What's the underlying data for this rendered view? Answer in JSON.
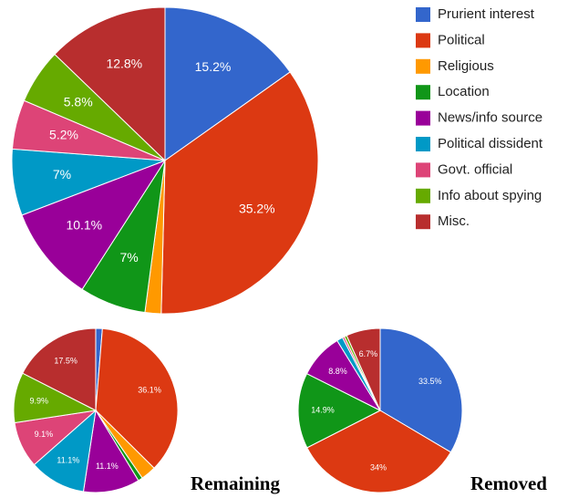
{
  "chart_data": [
    {
      "type": "pie",
      "categories": [
        "Prurient interest",
        "Political",
        "Religious",
        "Location",
        "News/info source",
        "Political dissident",
        "Govt. official",
        "Info about spying",
        "Misc."
      ],
      "values": [
        15.2,
        35.2,
        1.7,
        7,
        10.1,
        7,
        5.2,
        5.8,
        12.8
      ],
      "value_labels": [
        "15.2%",
        "35.2%",
        null,
        "7%",
        "10.1%",
        "7%",
        "5.2%",
        "5.8%",
        "12.8%"
      ],
      "colors": [
        "#3366cc",
        "#dc3912",
        "#ff9900",
        "#109618",
        "#990099",
        "#0099c6",
        "#dd4477",
        "#66aa00",
        "#b82e2e"
      ],
      "legend": "right"
    },
    {
      "type": "pie",
      "title": "Remaining",
      "categories": [
        "Prurient interest",
        "Political",
        "Religious",
        "Location",
        "News/info source",
        "Political dissident",
        "Govt. official",
        "Info about spying",
        "Misc."
      ],
      "values": [
        1.3,
        36.1,
        3.0,
        0.9,
        11.1,
        11.1,
        9.1,
        9.9,
        17.5
      ],
      "value_labels": [
        null,
        "36.1%",
        null,
        null,
        "11.1%",
        "11.1%",
        "9.1%",
        "9.9%",
        "17.5%"
      ],
      "colors": [
        "#3366cc",
        "#dc3912",
        "#ff9900",
        "#109618",
        "#990099",
        "#0099c6",
        "#dd4477",
        "#66aa00",
        "#b82e2e"
      ]
    },
    {
      "type": "pie",
      "title": "Removed",
      "categories": [
        "Prurient interest",
        "Political",
        "Religious",
        "Location",
        "News/info source",
        "Political dissident",
        "Govt. official",
        "Info about spying",
        "Misc."
      ],
      "values": [
        33.5,
        34,
        0,
        14.9,
        8.8,
        1.2,
        0.4,
        0.5,
        6.7
      ],
      "value_labels": [
        "33.5%",
        "34%",
        null,
        "14.9%",
        "8.8%",
        null,
        null,
        null,
        "6.7%"
      ],
      "colors": [
        "#3366cc",
        "#dc3912",
        "#ff9900",
        "#109618",
        "#990099",
        "#0099c6",
        "#dd4477",
        "#66aa00",
        "#b82e2e"
      ]
    }
  ]
}
